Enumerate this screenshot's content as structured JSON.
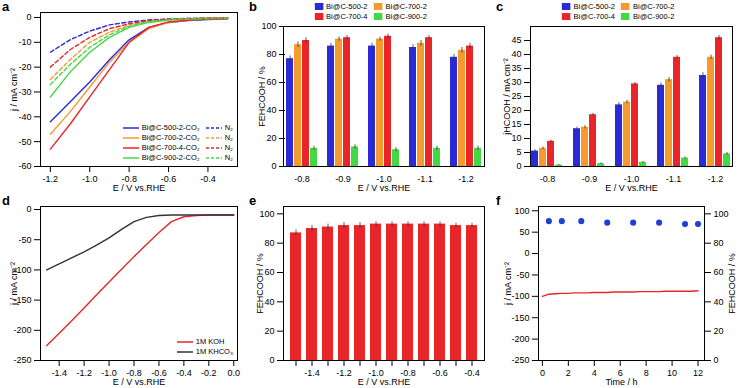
{
  "chart_data": [
    {
      "type": "line",
      "title": "a",
      "x_label": "E / V vs.RHE",
      "y_label": "j / mA cm⁻²",
      "xlim": [
        -1.25,
        -0.25
      ],
      "xticks": [
        -1.2,
        {
          "value": -1,
          "label": "-1.0"
        },
        -0.8,
        -0.6,
        -0.4
      ],
      "ylim": [
        -60,
        2
      ],
      "yticks": [
        -60,
        -50,
        -40,
        -30,
        -20,
        -10,
        0
      ],
      "x": [
        -1.2,
        -1.1,
        -1.0,
        -0.9,
        -0.8,
        -0.7,
        -0.6,
        -0.5,
        -0.4,
        -0.3
      ],
      "legend": "lower right",
      "series": [
        {
          "name": "Bi@C-500-2-CO₂",
          "color": "#2a2ad6",
          "line_style": "solid",
          "values": [
            -42,
            -34,
            -26,
            -17,
            -9,
            -4,
            -2,
            -1.2,
            -0.8,
            -0.5
          ]
        },
        {
          "name": "Bi@C-700-2-CO₂",
          "color": "#f59a2f",
          "line_style": "solid",
          "values": [
            -47,
            -38,
            -28,
            -18,
            -10,
            -4.5,
            -2,
            -1,
            -0.6,
            -0.4
          ]
        },
        {
          "name": "Bi@C-700-4-CO₂",
          "color": "#e8262a",
          "line_style": "solid",
          "values": [
            -53,
            -43,
            -32,
            -21,
            -10,
            -4,
            -1.8,
            -1,
            -0.6,
            -0.4
          ]
        },
        {
          "name": "Bi@C-900-2-CO₂",
          "color": "#44d844",
          "line_style": "solid",
          "values": [
            -32,
            -22,
            -14,
            -8,
            -4,
            -2,
            -1,
            -0.6,
            -0.4,
            -0.3
          ]
        },
        {
          "name": "N₂",
          "color": "#2a2ad6",
          "line_style": "dashed",
          "values": [
            -14,
            -9,
            -5.5,
            -3,
            -1.8,
            -1,
            -0.6,
            -0.4,
            -0.3,
            -0.2
          ]
        },
        {
          "name": "N₂",
          "color": "#f59a2f",
          "line_style": "dashed",
          "values": [
            -25,
            -17,
            -10,
            -6,
            -3,
            -1.5,
            -0.8,
            -0.5,
            -0.3,
            -0.2
          ]
        },
        {
          "name": "N₂",
          "color": "#e8262a",
          "line_style": "dashed",
          "values": [
            -20,
            -13,
            -8,
            -4.5,
            -2.5,
            -1.2,
            -0.7,
            -0.4,
            -0.3,
            -0.2
          ]
        },
        {
          "name": "N₂",
          "color": "#44d844",
          "line_style": "dashed",
          "values": [
            -27,
            -19,
            -12,
            -7,
            -3.5,
            -1.7,
            -0.9,
            -0.5,
            -0.3,
            -0.2
          ]
        }
      ]
    },
    {
      "type": "bar",
      "title": "b",
      "x_label": "E / V vs.RHE",
      "y_label": "FEHCOOH / %",
      "categories": [
        "-0.8",
        "-0.9",
        "-1.0",
        "-1.1",
        "-1.2"
      ],
      "ylim": [
        0,
        100
      ],
      "yticks": [
        0,
        20,
        40,
        60,
        80,
        100
      ],
      "legend": "upper center",
      "series": [
        {
          "name": "Bi@C-500-2",
          "color": "#2a2ad6",
          "values": [
            77,
            86,
            86,
            85,
            78
          ],
          "errors": [
            2,
            2,
            2,
            2,
            2
          ]
        },
        {
          "name": "Bi@C-700-2",
          "color": "#f59a2f",
          "values": [
            87,
            91,
            91,
            88,
            83
          ],
          "errors": [
            2,
            1.5,
            1.5,
            2,
            2
          ]
        },
        {
          "name": "Bi@C-700-4",
          "color": "#e8262a",
          "values": [
            90,
            92,
            93,
            92,
            86
          ],
          "errors": [
            2,
            1.5,
            1.5,
            1.5,
            2
          ]
        },
        {
          "name": "Bi@C-900-2",
          "color": "#44d844",
          "values": [
            13,
            14,
            12,
            13,
            13
          ],
          "errors": [
            1.5,
            1.5,
            1.5,
            1.5,
            1.5
          ]
        }
      ]
    },
    {
      "type": "bar",
      "title": "c",
      "x_label": "E / V vs.RHE",
      "y_label": "jHCOOH / mA cm⁻²",
      "categories": [
        "-0.8",
        "-0.9",
        "-1.0",
        "-1.1",
        "-1.2"
      ],
      "ylim": [
        0,
        50
      ],
      "yticks": [
        0,
        5,
        10,
        15,
        20,
        25,
        30,
        35,
        40,
        45
      ],
      "legend": "upper center",
      "series": [
        {
          "name": "Bi@C-500-2",
          "color": "#2a2ad6",
          "values": [
            5.5,
            13.5,
            22,
            29,
            32.5
          ],
          "errors": [
            0.5,
            0.6,
            0.8,
            0.8,
            1
          ]
        },
        {
          "name": "Bi@C-700-2",
          "color": "#f59a2f",
          "values": [
            6.5,
            14,
            23,
            31,
            39
          ],
          "errors": [
            0.5,
            0.6,
            0.6,
            0.8,
            0.8
          ]
        },
        {
          "name": "Bi@C-700-4",
          "color": "#e8262a",
          "values": [
            9,
            18.5,
            29.5,
            39,
            46
          ],
          "errors": [
            0.4,
            0.5,
            0.5,
            0.6,
            0.8
          ]
        },
        {
          "name": "Bi@C-900-2",
          "color": "#44d844",
          "values": [
            0.5,
            1,
            1.5,
            3,
            4.5
          ],
          "errors": [
            0.2,
            0.3,
            0.3,
            0.4,
            0.5
          ]
        }
      ]
    },
    {
      "type": "line",
      "title": "d",
      "x_label": "E / V vs.RHE",
      "y_label": "j / mA cm⁻²",
      "xlim": [
        -1.55,
        0.03
      ],
      "xticks": [
        -1.4,
        -1.2,
        {
          "value": -1,
          "label": "-1.0"
        },
        -0.8,
        -0.6,
        -0.4,
        -0.2,
        {
          "value": 0,
          "label": "0.0"
        }
      ],
      "ylim": [
        -250,
        5
      ],
      "yticks": [
        -250,
        -200,
        -150,
        -100,
        -50,
        0
      ],
      "x": [
        -1.5,
        -1.4,
        -1.3,
        -1.2,
        -1.1,
        -1.0,
        -0.9,
        -0.8,
        -0.7,
        -0.6,
        -0.5,
        -0.4,
        -0.3,
        -0.2,
        -0.1,
        0
      ],
      "legend": "lower right",
      "series": [
        {
          "name": "1M KOH",
          "color": "#e8262a",
          "line_style": "solid",
          "values": [
            -225,
            -205,
            -184,
            -163,
            -141,
            -120,
            -99,
            -78,
            -58,
            -38,
            -20,
            -12,
            -10,
            -9,
            -9,
            -9
          ]
        },
        {
          "name": "1M KHCO₃",
          "color": "#333333",
          "line_style": "solid",
          "values": [
            -100,
            -90,
            -80,
            -70,
            -59,
            -47,
            -33,
            -20,
            -13,
            -10,
            -9,
            -9,
            -9,
            -9,
            -9,
            -9
          ]
        }
      ]
    },
    {
      "type": "bar",
      "title": "e",
      "x_label": "E / V vs.RHE",
      "y_label": "FEHCOOH / %",
      "categories": [
        null,
        "-1.4",
        null,
        "-1.2",
        null,
        "-1.0",
        null,
        "-0.8",
        null,
        "-0.6",
        null,
        "-0.4"
      ],
      "values": [
        87,
        90,
        91,
        92,
        92,
        93,
        93,
        93,
        93,
        93,
        92,
        92
      ],
      "errors": [
        2,
        2,
        2,
        2,
        2,
        1.5,
        1.5,
        1.5,
        1.5,
        1.5,
        1.5,
        1.5
      ],
      "color": "#e8262a",
      "ylim": [
        0,
        105
      ],
      "yticks": [
        0,
        20,
        40,
        60,
        80,
        100
      ]
    },
    {
      "type": "line",
      "title": "f",
      "x_label": "Time / h",
      "y_label": "j / mA cm⁻²",
      "y2_label": "FEHCOOH / %",
      "xlim": [
        -0.3,
        12.5
      ],
      "xticks": [
        0,
        2,
        4,
        6,
        8,
        10,
        12
      ],
      "ylim": [
        -250,
        110
      ],
      "yticks": [
        -250,
        -200,
        -150,
        -100,
        -50,
        0,
        50,
        100
      ],
      "y2lim": [
        0,
        105
      ],
      "y2ticks": [
        0,
        20,
        40,
        60,
        80,
        100
      ],
      "series": [
        {
          "type": "line",
          "color": "#e8262a",
          "line_style": "solid",
          "x": [
            0,
            0.5,
            1,
            1.5,
            2,
            2.5,
            3,
            3.5,
            4,
            4.5,
            5,
            5.5,
            6,
            6.5,
            7,
            7.5,
            8,
            8.5,
            9,
            9.5,
            10,
            10.5,
            11,
            11.5,
            12
          ],
          "values": [
            -100,
            -95,
            -94,
            -93,
            -93,
            -92,
            -92,
            -92,
            -91,
            -91,
            -91,
            -90,
            -90,
            -90,
            -90,
            -89,
            -89,
            -89,
            -89,
            -88,
            -88,
            -88,
            -88,
            -88,
            -87
          ]
        },
        {
          "type": "scatter",
          "axis": "y2",
          "color": "#1f3fd8",
          "marker": "circle",
          "x": [
            0.5,
            1.5,
            3,
            5,
            7,
            9,
            11,
            12
          ],
          "values": [
            95,
            95,
            95,
            94,
            94,
            94,
            93,
            93
          ]
        }
      ]
    }
  ]
}
